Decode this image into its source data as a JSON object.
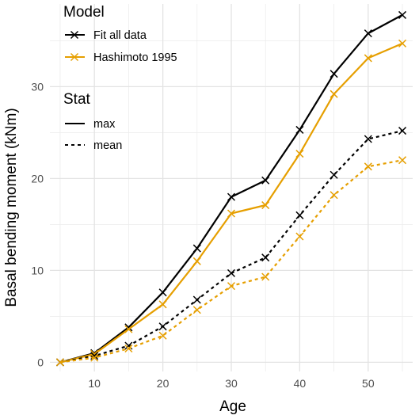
{
  "chart_data": {
    "type": "line",
    "xlabel": "Age",
    "ylabel": "Basal bending moment (kNm)",
    "xlim": [
      3.5,
      56.5
    ],
    "ylim": [
      -1,
      39
    ],
    "x_ticks": [
      10,
      20,
      30,
      40,
      50
    ],
    "y_ticks": [
      0,
      10,
      20,
      30
    ],
    "grid": true,
    "legend": {
      "placement": "top-left",
      "model_title": "Model",
      "model_entries": [
        {
          "label": "Fit all data",
          "color": "#000000"
        },
        {
          "label": "Hashimoto 1995",
          "color": "#E69F00"
        }
      ],
      "stat_title": "Stat",
      "stat_entries": [
        {
          "label": "max",
          "linetype": "solid"
        },
        {
          "label": "mean",
          "linetype": "dashed"
        }
      ]
    },
    "x": [
      5,
      10,
      15,
      20,
      25,
      30,
      35,
      40,
      45,
      50,
      55
    ],
    "series": [
      {
        "model": "Fit all data",
        "stat": "max",
        "color": "#000000",
        "dashed": false,
        "values": [
          0.0,
          1.0,
          3.8,
          7.6,
          12.4,
          18.0,
          19.8,
          25.3,
          31.4,
          35.8,
          37.8
        ]
      },
      {
        "model": "Hashimoto 1995",
        "stat": "max",
        "color": "#E69F00",
        "dashed": false,
        "values": [
          0.0,
          0.9,
          3.6,
          6.3,
          11.0,
          16.2,
          17.1,
          22.7,
          29.2,
          33.1,
          34.7
        ]
      },
      {
        "model": "Fit all data",
        "stat": "mean",
        "color": "#000000",
        "dashed": true,
        "values": [
          0.0,
          0.7,
          1.8,
          3.9,
          6.8,
          9.7,
          11.4,
          16.0,
          20.4,
          24.3,
          25.2
        ]
      },
      {
        "model": "Hashimoto 1995",
        "stat": "mean",
        "color": "#E69F00",
        "dashed": true,
        "values": [
          0.0,
          0.5,
          1.5,
          2.9,
          5.7,
          8.3,
          9.3,
          13.7,
          18.2,
          21.3,
          22.0
        ]
      }
    ]
  }
}
